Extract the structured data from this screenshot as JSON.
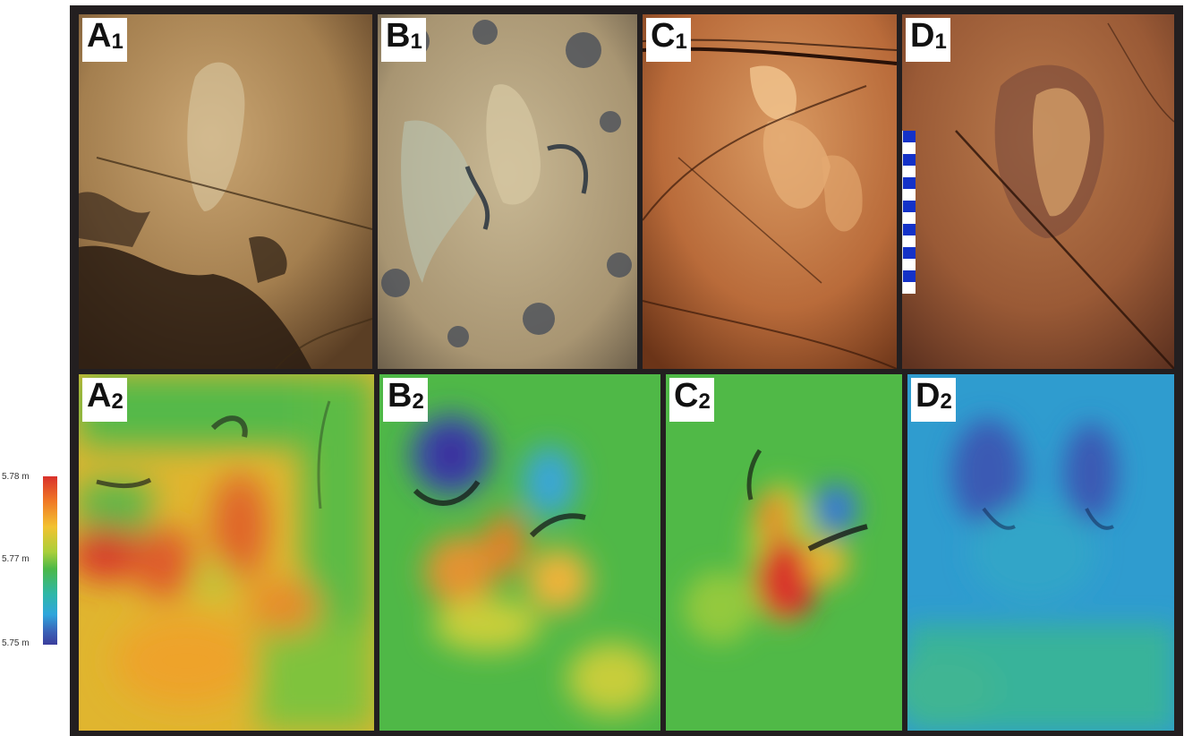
{
  "legend": {
    "max_label": "5.78 m",
    "mid_label": "5.77 m",
    "min_label": "5.75 m",
    "colors": [
      "#d9312b",
      "#f07a26",
      "#f2c230",
      "#a9cf3a",
      "#4cb848",
      "#2fb7a8",
      "#2fa6dc",
      "#3a63b8",
      "#3b3d9c"
    ]
  },
  "panels": {
    "a1": {
      "letter": "A",
      "sub": "1",
      "kind": "photo",
      "tone": "tan"
    },
    "b1": {
      "letter": "B",
      "sub": "1",
      "kind": "photo",
      "tone": "grey-tan"
    },
    "c1": {
      "letter": "C",
      "sub": "1",
      "kind": "photo",
      "tone": "red-orange"
    },
    "d1": {
      "letter": "D",
      "sub": "1",
      "kind": "photo",
      "tone": "red-brown"
    },
    "a2": {
      "letter": "A",
      "sub": "2",
      "kind": "height-map",
      "dominant": "orange-red"
    },
    "b2": {
      "letter": "B",
      "sub": "2",
      "kind": "height-map",
      "dominant": "green-blue"
    },
    "c2": {
      "letter": "C",
      "sub": "2",
      "kind": "height-map",
      "dominant": "green-red"
    },
    "d2": {
      "letter": "D",
      "sub": "2",
      "kind": "height-map",
      "dominant": "blue"
    }
  }
}
